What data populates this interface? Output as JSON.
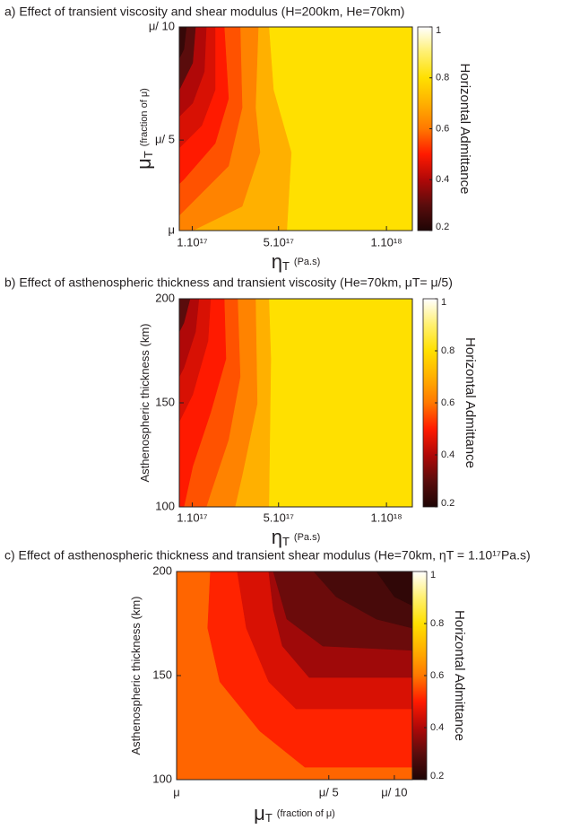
{
  "colormap": [
    [
      0.2,
      "#1e0505"
    ],
    [
      0.3,
      "#5a0c0c"
    ],
    [
      0.4,
      "#b00808"
    ],
    [
      0.5,
      "#ff1a00"
    ],
    [
      0.6,
      "#ff7800"
    ],
    [
      0.7,
      "#ffb000"
    ],
    [
      0.8,
      "#ffe000"
    ],
    [
      0.9,
      "#fff070"
    ],
    [
      1,
      "#ffffff"
    ]
  ],
  "chart_data": [
    {
      "type": "contour",
      "title": "a) Effect of transient viscosity and shear modulus (H=200km, He=70km)",
      "xlabel": [
        "η",
        "T",
        "(Pa.s)"
      ],
      "ylabel": [
        "μ",
        "T",
        "(fraction of μ)"
      ],
      "xlim": [
        4e+16,
        1.12e+18
      ],
      "ylim": [
        1,
        10
      ],
      "xticks": [
        {
          "value": 1e+17,
          "label": "1.10¹⁷"
        },
        {
          "value": 5e+17,
          "label": "5.10¹⁷"
        },
        {
          "value": 1e+18,
          "label": "1.10¹⁸"
        }
      ],
      "yticks": [
        {
          "value": 1,
          "label": "μ"
        },
        {
          "value": 5,
          "label": "μ/ 5"
        },
        {
          "value": 10,
          "label": "μ/ 10"
        }
      ],
      "colorbar": {
        "label": "Horizontal Admittance",
        "lim": [
          0.2,
          1
        ],
        "ticks": [
          0.2,
          0.4,
          0.6,
          0.8,
          1
        ]
      },
      "contours": [
        {
          "level": 0.8,
          "x": [
            4e+16,
            1.12e+18,
            1.12e+18,
            4e+16
          ],
          "y": [
            10,
            10,
            1,
            1
          ]
        },
        {
          "level": 0.7,
          "x": [
            4e+16,
            4.55e+17,
            4.76e+17,
            5.59e+17,
            5.38e+17,
            4e+16
          ],
          "y": [
            10,
            10,
            7.22,
            4.45,
            1,
            1
          ]
        },
        {
          "level": 0.62,
          "x": [
            4e+16,
            4.06e+17,
            3.93e+17,
            4.14e+17,
            3.31e+17,
            1.02e+17,
            4e+16
          ],
          "y": [
            10,
            10,
            6.43,
            4.45,
            2.07,
            1,
            1
          ]
        },
        {
          "level": 0.56,
          "x": [
            4e+16,
            3.22e+17,
            3.31e+17,
            2.68e+17,
            8.2e+16,
            4e+16
          ],
          "y": [
            10,
            10,
            6.43,
            3.85,
            2.07,
            1.67
          ]
        },
        {
          "level": 0.5,
          "x": [
            4e+16,
            2.48e+17,
            2.68e+17,
            2.06e+17,
            6.1e+16,
            4e+16
          ],
          "y": [
            10,
            10,
            6.83,
            4.85,
            3.26,
            3.06
          ]
        },
        {
          "level": 0.45,
          "x": [
            4e+16,
            2.06e+17,
            2.06e+17,
            1.44e+17,
            4e+16
          ],
          "y": [
            10,
            10,
            7.22,
            5.64,
            4.65
          ]
        },
        {
          "level": 0.4,
          "x": [
            4e+16,
            1.65e+17,
            1.56e+17,
            1.02e+17,
            4e+16
          ],
          "y": [
            10,
            10,
            8.02,
            6.63,
            6.04
          ]
        },
        {
          "level": 0.3,
          "x": [
            4e+16,
            1.15e+17,
            1.02e+17,
            4e+16
          ],
          "y": [
            10,
            10,
            8.41,
            7.22
          ]
        },
        {
          "level": 0.24,
          "x": [
            4e+16,
            7.3e+16,
            6.1e+16,
            4e+16
          ],
          "y": [
            10,
            10,
            9.01,
            8.61
          ]
        }
      ]
    },
    {
      "type": "contour",
      "title": "b) Effect of asthenospheric thickness and transient viscosity (He=70km, μT= μ/5)",
      "xlabel": [
        "η",
        "T",
        "(Pa.s)"
      ],
      "ylabel": [
        "Asthenospheric thickness (km)"
      ],
      "xlim": [
        4e+16,
        1.12e+18
      ],
      "ylim": [
        100,
        200
      ],
      "xticks": [
        {
          "value": 1e+17,
          "label": "1.10¹⁷"
        },
        {
          "value": 5e+17,
          "label": "5.10¹⁷"
        },
        {
          "value": 1e+18,
          "label": "1.10¹⁸"
        }
      ],
      "yticks": [
        100,
        150,
        200
      ],
      "colorbar": {
        "label": "Horizontal Admittance",
        "lim": [
          0.2,
          1
        ],
        "ticks": [
          0.2,
          0.4,
          0.6,
          0.8,
          1
        ]
      },
      "contours": [
        {
          "level": 0.8,
          "x": [
            4e+16,
            1.12e+18,
            1.12e+18,
            4e+16
          ],
          "y": [
            200,
            200,
            100,
            100
          ]
        },
        {
          "level": 0.7,
          "x": [
            4e+16,
            4.55e+17,
            4.64e+17,
            4.55e+17,
            4e+16
          ],
          "y": [
            200,
            200,
            171.1,
            100,
            100
          ]
        },
        {
          "level": 0.62,
          "x": [
            4e+16,
            3.93e+17,
            4.01e+17,
            3.31e+17,
            2.98e+17,
            4e+16
          ],
          "y": [
            200,
            200,
            149.6,
            115.1,
            100,
            100
          ]
        },
        {
          "level": 0.56,
          "x": [
            4e+16,
            3.1e+17,
            3.22e+17,
            2.68e+17,
            1.85e+17,
            1.65e+17,
            4e+16
          ],
          "y": [
            200,
            200,
            162.5,
            132.3,
            106.5,
            100,
            100
          ]
        },
        {
          "level": 0.5,
          "x": [
            4e+16,
            2.48e+17,
            2.56e+17,
            1.85e+17,
            1.02e+17,
            6.1e+16,
            4e+16
          ],
          "y": [
            200,
            200,
            171.1,
            145.3,
            119.4,
            100,
            100
          ]
        },
        {
          "level": 0.45,
          "x": [
            4e+16,
            1.85e+17,
            1.73e+17,
            1.02e+17,
            4e+16
          ],
          "y": [
            200,
            200,
            179.7,
            153.9,
            140.9
          ]
        },
        {
          "level": 0.4,
          "x": [
            4e+16,
            1.31e+17,
            1.15e+17,
            6.1e+16,
            4e+16
          ],
          "y": [
            200,
            200,
            184.1,
            166.8,
            162.5
          ]
        },
        {
          "level": 0.3,
          "x": [
            4e+16,
            9e+16,
            6.1e+16,
            4e+16
          ],
          "y": [
            200,
            200,
            188.4,
            184.1
          ]
        }
      ]
    },
    {
      "type": "contour",
      "title": "c) Effect of asthenospheric thickness and transient shear modulus (He=70km, ηT = 1.10¹⁷Pa.s)",
      "xlabel": [
        "μ",
        "T",
        "(fraction of μ)"
      ],
      "ylabel": [
        "Asthenospheric thickness (km)"
      ],
      "xlim": [
        1,
        12.1
      ],
      "xscale": "log",
      "ylim": [
        100,
        200
      ],
      "xticks": [
        {
          "value": 1,
          "label": "μ"
        },
        {
          "value": 5,
          "label": "μ/ 5"
        },
        {
          "value": 10,
          "label": "μ/ 10"
        }
      ],
      "yticks": [
        100,
        150,
        200
      ],
      "colorbar": {
        "label": "Horizontal Admittance",
        "lim": [
          0.2,
          1
        ],
        "ticks": [
          0.2,
          0.4,
          0.6,
          0.8,
          1
        ]
      },
      "contours": [
        {
          "level": 0.58,
          "x": [
            1,
            12.1,
            12.1,
            1
          ],
          "y": [
            200,
            200,
            100,
            100
          ]
        },
        {
          "level": 0.51,
          "x": [
            1.43,
            12.1,
            12.1,
            3.88,
            2.41,
            1.58,
            1.39
          ],
          "y": [
            200,
            200,
            106.0,
            106.0,
            123.3,
            147.0,
            172.8
          ]
        },
        {
          "level": 0.45,
          "x": [
            1.9,
            12.1,
            12.1,
            3.53,
            2.65,
            2.09
          ],
          "y": [
            200,
            200,
            134.0,
            134.0,
            147.0,
            172.8
          ]
        },
        {
          "level": 0.38,
          "x": [
            2.65,
            12.1,
            12.1,
            4.06,
            3.06,
            2.78
          ],
          "y": [
            200,
            200,
            149.1,
            149.1,
            164.2,
            181.5
          ]
        },
        {
          "level": 0.32,
          "x": [
            2.78,
            12.1,
            12.1,
            4.69,
            3.21
          ],
          "y": [
            200,
            200,
            162.1,
            164.2,
            177.1
          ]
        },
        {
          "level": 0.27,
          "x": [
            4.26,
            12.1,
            12.1,
            8.27,
            5.4
          ],
          "y": [
            200,
            200,
            172.8,
            177.1,
            187.9
          ]
        },
        {
          "level": 0.23,
          "x": [
            8.27,
            12.1,
            12.1,
            10
          ],
          "y": [
            200,
            200,
            183.6,
            187.9
          ]
        }
      ]
    }
  ]
}
